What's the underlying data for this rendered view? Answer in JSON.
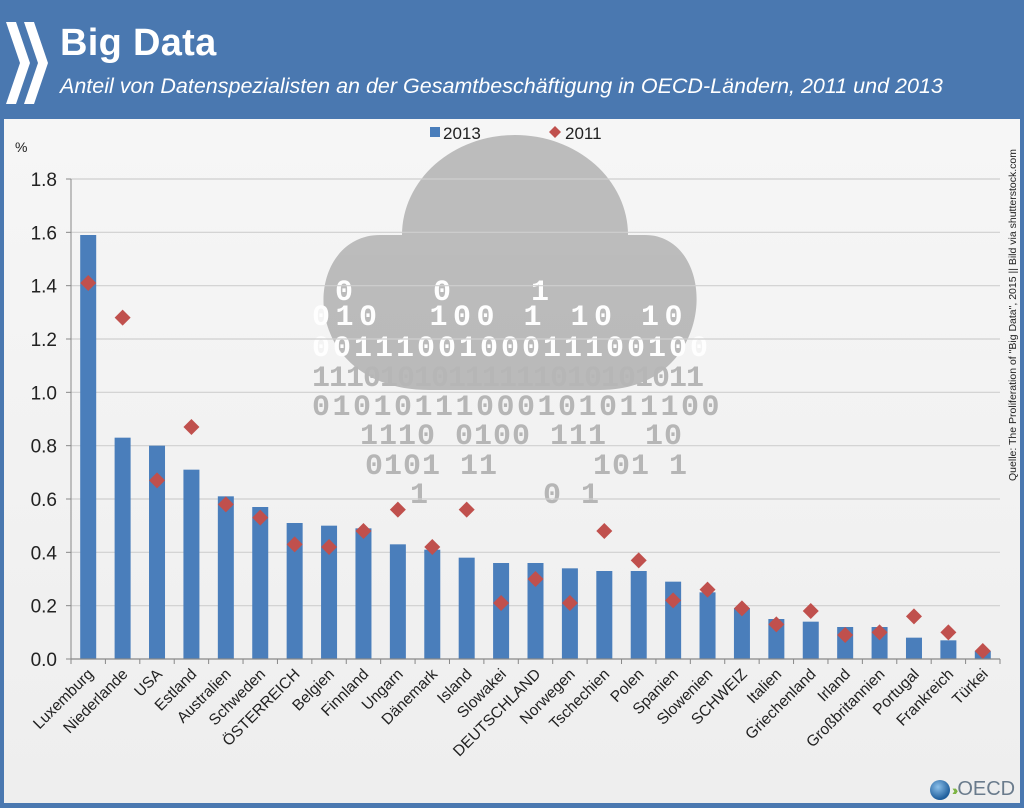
{
  "header": {
    "title": "Big Data",
    "subtitle": "Anteil von Datenspezialisten an der Gesamtbeschäftigung in OECD-Ländern, 2011 und 2013",
    "logo_icon": "oecd-chevrons-icon"
  },
  "source": "Quelle: The Proliferation of \"Big Data\", 2015 || Bild via shutterstock.com",
  "footer": {
    "logo_text": "OECD",
    "logo_icon": "oecd-globe-icon"
  },
  "colors": {
    "header_bg": "#4a78b0",
    "bar_2013": "#4a7ebb",
    "marker_2011": "#c0504d",
    "cloud": "#b8b8b8"
  },
  "chart_data": {
    "type": "bar",
    "title": "Big Data",
    "subtitle": "Anteil von Datenspezialisten an der Gesamtbeschäftigung in OECD-Ländern, 2011 und 2013",
    "xlabel": "",
    "ylabel": "%",
    "ylim": [
      0,
      1.8
    ],
    "yticks": [
      "0.0",
      "0.2",
      "0.4",
      "0.6",
      "0.8",
      "1.0",
      "1.2",
      "1.4",
      "1.6",
      "1.8"
    ],
    "ytick_values": [
      0,
      0.2,
      0.4,
      0.6,
      0.8,
      1.0,
      1.2,
      1.4,
      1.6,
      1.8
    ],
    "grid": true,
    "legend_position": "top-center",
    "categories": [
      "Luxemburg",
      "Niederlande",
      "USA",
      "Estland",
      "Australien",
      "Schweden",
      "ÖSTERREICH",
      "Belgien",
      "Finnland",
      "Ungarn",
      "Dänemark",
      "Island",
      "Slowakei",
      "DEUTSCHLAND",
      "Norwegen",
      "Tschechien",
      "Polen",
      "Spanien",
      "Slowenien",
      "SCHWEIZ",
      "Italien",
      "Griechenland",
      "Irland",
      "Großbritannien",
      "Portugal",
      "Frankreich",
      "Türkei"
    ],
    "series": [
      {
        "name": "2013",
        "type": "bar",
        "values": [
          1.59,
          0.83,
          0.8,
          0.71,
          0.61,
          0.57,
          0.51,
          0.5,
          0.49,
          0.43,
          0.41,
          0.38,
          0.36,
          0.36,
          0.34,
          0.33,
          0.33,
          0.29,
          0.25,
          0.19,
          0.15,
          0.14,
          0.12,
          0.12,
          0.08,
          0.07,
          0.03
        ]
      },
      {
        "name": "2011",
        "type": "marker-diamond",
        "values": [
          1.41,
          1.28,
          0.67,
          0.87,
          0.58,
          0.53,
          0.43,
          0.42,
          0.48,
          0.56,
          0.42,
          0.56,
          0.21,
          0.3,
          0.21,
          0.48,
          0.37,
          0.22,
          0.26,
          0.19,
          0.13,
          0.18,
          0.09,
          0.1,
          0.16,
          0.1,
          0.03
        ]
      }
    ]
  }
}
